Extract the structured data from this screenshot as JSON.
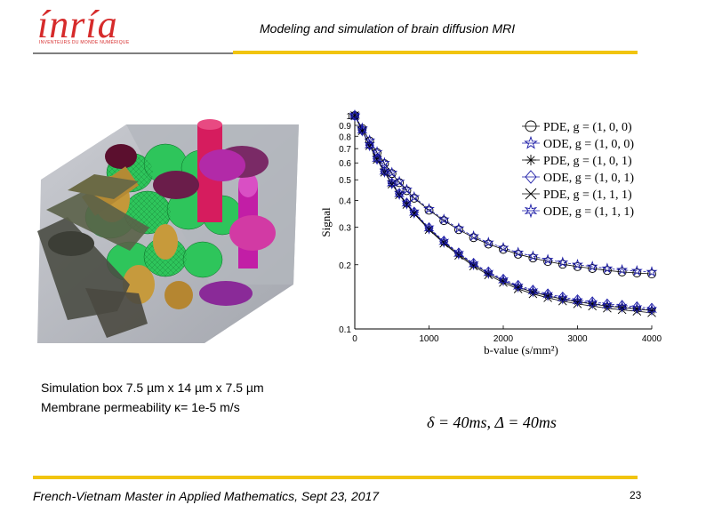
{
  "header": {
    "logo_text": "ínría",
    "logo_tagline": "INVENTEURS DU MONDE NUMÉRIQUE",
    "title": "Modeling and simulation of brain diffusion MRI"
  },
  "params": {
    "line1": "Simulation box 7.5 µm x 14 µm x 7.5 µm",
    "line2": "Membrane permeability κ= 1e-5 m/s"
  },
  "formula": "δ = 40ms, Δ = 40ms",
  "footer": {
    "text": "French-Vietnam Master in Applied Mathematics, Sept 23, 2017",
    "page": "23"
  },
  "colors": {
    "accent_red": "#d62b2b",
    "rule_yellow": "#f1c40f",
    "series_black": "#000000",
    "series_blue": "#1a1aa6"
  },
  "chart_data": {
    "type": "line",
    "xlabel": "b-value (s/mm²)",
    "ylabel": "Signal",
    "xlim": [
      0,
      4000
    ],
    "ylim": [
      0.1,
      1
    ],
    "yscale": "log",
    "xticks": [
      0,
      1000,
      2000,
      3000,
      4000
    ],
    "yticks": [
      0.1,
      0.2,
      0.3,
      0.4,
      0.5,
      0.6,
      0.7,
      0.8,
      0.9,
      1
    ],
    "ytick_labels": [
      "0.1",
      "0.2",
      "0.3",
      "0.4",
      "0.5",
      "0.6",
      "0.7",
      "0.8",
      "0.9",
      "1"
    ],
    "legend_position": "top-right",
    "x": [
      0,
      100,
      200,
      300,
      400,
      500,
      600,
      700,
      800,
      1000,
      1200,
      1400,
      1600,
      1800,
      2000,
      2200,
      2400,
      2600,
      2800,
      3000,
      3200,
      3400,
      3600,
      3800,
      4000
    ],
    "series": [
      {
        "name": "PDE, g = (1, 0, 0)",
        "marker": "circle",
        "color": "#000000",
        "values": [
          1.0,
          0.87,
          0.76,
          0.67,
          0.595,
          0.535,
          0.485,
          0.445,
          0.41,
          0.36,
          0.322,
          0.292,
          0.268,
          0.25,
          0.236,
          0.224,
          0.215,
          0.207,
          0.201,
          0.196,
          0.192,
          0.188,
          0.185,
          0.183,
          0.181
        ]
      },
      {
        "name": "ODE, g = (1, 0, 0)",
        "marker": "star",
        "color": "#1a1aa6",
        "values": [
          1.0,
          0.872,
          0.765,
          0.675,
          0.6,
          0.54,
          0.49,
          0.45,
          0.415,
          0.365,
          0.326,
          0.296,
          0.272,
          0.254,
          0.24,
          0.228,
          0.219,
          0.211,
          0.205,
          0.2,
          0.196,
          0.192,
          0.189,
          0.187,
          0.185
        ]
      },
      {
        "name": "PDE, g = (1, 0, 1)",
        "marker": "asterisk",
        "color": "#000000",
        "values": [
          1.0,
          0.85,
          0.725,
          0.625,
          0.545,
          0.48,
          0.428,
          0.386,
          0.35,
          0.295,
          0.255,
          0.224,
          0.2,
          0.182,
          0.168,
          0.157,
          0.149,
          0.143,
          0.138,
          0.134,
          0.131,
          0.128,
          0.126,
          0.124,
          0.122
        ]
      },
      {
        "name": "ODE, g = (1, 0, 1)",
        "marker": "diamond",
        "color": "#1a1aa6",
        "values": [
          1.0,
          0.852,
          0.728,
          0.628,
          0.548,
          0.483,
          0.431,
          0.389,
          0.353,
          0.298,
          0.258,
          0.227,
          0.203,
          0.185,
          0.171,
          0.16,
          0.152,
          0.146,
          0.141,
          0.137,
          0.134,
          0.131,
          0.129,
          0.127,
          0.125
        ]
      },
      {
        "name": "PDE, g = (1, 1, 1)",
        "marker": "x",
        "color": "#000000",
        "values": [
          1.0,
          0.848,
          0.722,
          0.622,
          0.542,
          0.477,
          0.425,
          0.383,
          0.347,
          0.292,
          0.252,
          0.221,
          0.197,
          0.179,
          0.165,
          0.154,
          0.146,
          0.14,
          0.135,
          0.131,
          0.128,
          0.125,
          0.123,
          0.121,
          0.119
        ]
      },
      {
        "name": "ODE, g = (1, 1, 1)",
        "marker": "hexagram",
        "color": "#1a1aa6",
        "values": [
          1.0,
          0.851,
          0.726,
          0.626,
          0.546,
          0.481,
          0.429,
          0.387,
          0.351,
          0.296,
          0.256,
          0.225,
          0.201,
          0.183,
          0.169,
          0.158,
          0.15,
          0.144,
          0.139,
          0.135,
          0.132,
          0.129,
          0.127,
          0.125,
          0.123
        ]
      }
    ]
  }
}
